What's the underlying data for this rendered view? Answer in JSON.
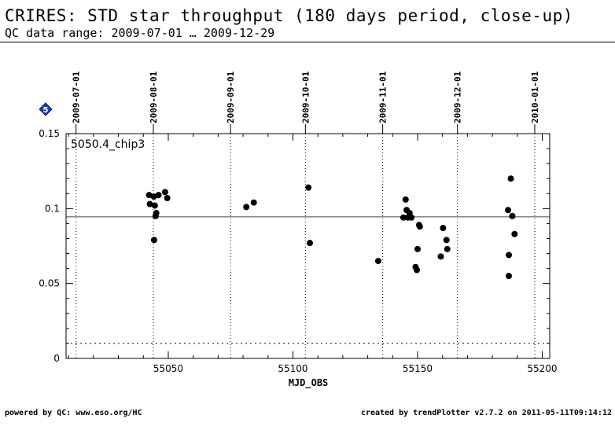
{
  "header": {
    "title": "CRIRES: STD star throughput (180 days period, close-up)",
    "subtitle": "QC data range: 2009-07-01 … 2009-12-29"
  },
  "footer": {
    "left": "powered by QC: www.eso.org/HC",
    "right": "created by trendPlotter v2.7.2 on 2011-05-11T09:14:12"
  },
  "badge": {
    "text": "5",
    "color": "#1a3fd6"
  },
  "chart_data": {
    "type": "scatter",
    "label": "5050.4_chip3",
    "xlabel": "MJD_OBS",
    "ylabel": "",
    "xlim": [
      55009,
      55203
    ],
    "ylim": [
      0,
      0.15
    ],
    "x_ticks": [
      55050,
      55100,
      55150,
      55200
    ],
    "x_tick_labels": [
      "55050",
      "55100",
      "55150",
      "55200"
    ],
    "y_ticks": [
      0,
      0.05,
      0.1,
      0.15
    ],
    "y_tick_labels": [
      "0",
      "0.05",
      "0.1",
      "0.15"
    ],
    "date_ticks": [
      {
        "x": 55013,
        "label": "2009-07-01"
      },
      {
        "x": 55044,
        "label": "2009-08-01"
      },
      {
        "x": 55075,
        "label": "2009-09-01"
      },
      {
        "x": 55105,
        "label": "2009-10-01"
      },
      {
        "x": 55136,
        "label": "2009-11-01"
      },
      {
        "x": 55166,
        "label": "2009-12-01"
      },
      {
        "x": 55197,
        "label": "2010-01-01"
      }
    ],
    "reference_line": 0.0945,
    "threshold_line": 0.01,
    "marker_color": "#000000",
    "points": [
      {
        "x": 55042.3,
        "y": 0.109
      },
      {
        "x": 55042.6,
        "y": 0.103
      },
      {
        "x": 55044.2,
        "y": 0.108
      },
      {
        "x": 55044.6,
        "y": 0.102
      },
      {
        "x": 55044.3,
        "y": 0.079
      },
      {
        "x": 55044.9,
        "y": 0.095
      },
      {
        "x": 55045.2,
        "y": 0.097
      },
      {
        "x": 55046.1,
        "y": 0.109
      },
      {
        "x": 55048.7,
        "y": 0.111
      },
      {
        "x": 55049.6,
        "y": 0.107
      },
      {
        "x": 55081.3,
        "y": 0.101
      },
      {
        "x": 55084.3,
        "y": 0.104
      },
      {
        "x": 55106.2,
        "y": 0.114
      },
      {
        "x": 55106.8,
        "y": 0.077
      },
      {
        "x": 55134.2,
        "y": 0.065
      },
      {
        "x": 55144.3,
        "y": 0.094
      },
      {
        "x": 55145.2,
        "y": 0.106
      },
      {
        "x": 55145.6,
        "y": 0.099
      },
      {
        "x": 55146.1,
        "y": 0.094
      },
      {
        "x": 55146.8,
        "y": 0.097
      },
      {
        "x": 55147.5,
        "y": 0.094
      },
      {
        "x": 55149.2,
        "y": 0.061
      },
      {
        "x": 55149.7,
        "y": 0.059
      },
      {
        "x": 55150.0,
        "y": 0.073
      },
      {
        "x": 55150.6,
        "y": 0.089
      },
      {
        "x": 55150.9,
        "y": 0.088
      },
      {
        "x": 55159.3,
        "y": 0.068
      },
      {
        "x": 55160.2,
        "y": 0.087
      },
      {
        "x": 55161.6,
        "y": 0.079
      },
      {
        "x": 55161.9,
        "y": 0.073
      },
      {
        "x": 55186.3,
        "y": 0.099
      },
      {
        "x": 55186.6,
        "y": 0.069
      },
      {
        "x": 55186.6,
        "y": 0.055
      },
      {
        "x": 55187.4,
        "y": 0.12
      },
      {
        "x": 55188.0,
        "y": 0.095
      },
      {
        "x": 55188.9,
        "y": 0.083
      }
    ]
  }
}
